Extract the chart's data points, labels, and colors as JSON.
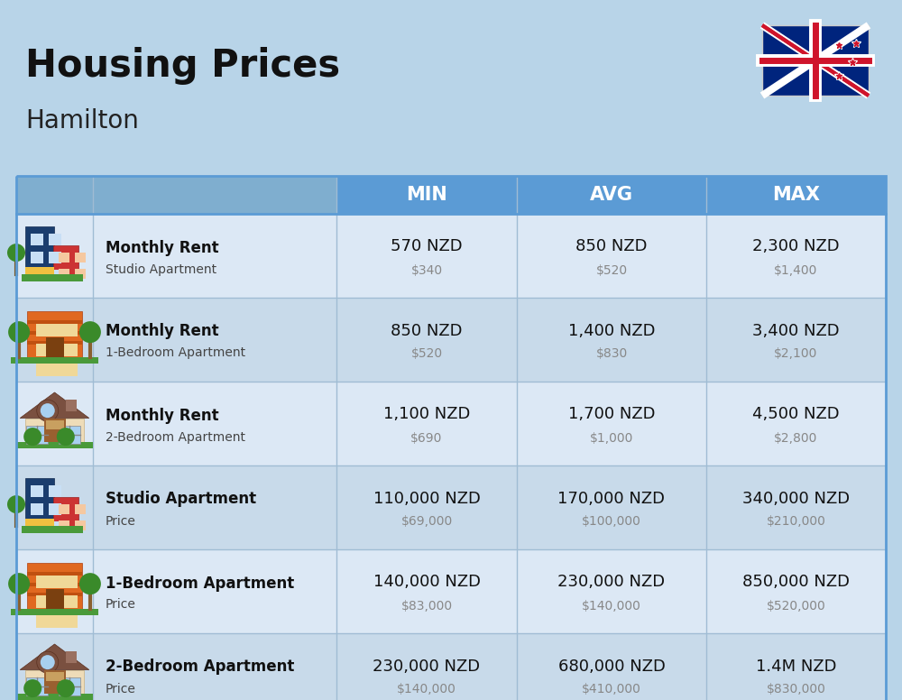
{
  "title": "Housing Prices",
  "subtitle": "Hamilton",
  "bg_color": "#b8d4e8",
  "header_bg": "#5b9bd5",
  "header_text_color": "#ffffff",
  "header_labels": [
    "MIN",
    "AVG",
    "MAX"
  ],
  "row_bg_light": "#dce8f5",
  "row_bg_dark": "#c8daea",
  "col_divider_color": "#a0bcd4",
  "rows": [
    {
      "bold_label": "Monthly Rent",
      "sub_label": "Studio Apartment",
      "min_nzd": "570 NZD",
      "min_usd": "$340",
      "avg_nzd": "850 NZD",
      "avg_usd": "$520",
      "max_nzd": "2,300 NZD",
      "max_usd": "$1,400",
      "icon_type": "studio_blue"
    },
    {
      "bold_label": "Monthly Rent",
      "sub_label": "1-Bedroom Apartment",
      "min_nzd": "850 NZD",
      "min_usd": "$520",
      "avg_nzd": "1,400 NZD",
      "avg_usd": "$830",
      "max_nzd": "3,400 NZD",
      "max_usd": "$2,100",
      "icon_type": "apartment_orange"
    },
    {
      "bold_label": "Monthly Rent",
      "sub_label": "2-Bedroom Apartment",
      "min_nzd": "1,100 NZD",
      "min_usd": "$690",
      "avg_nzd": "1,700 NZD",
      "avg_usd": "$1,000",
      "max_nzd": "4,500 NZD",
      "max_usd": "$2,800",
      "icon_type": "house_beige"
    },
    {
      "bold_label": "Studio Apartment",
      "sub_label": "Price",
      "min_nzd": "110,000 NZD",
      "min_usd": "$69,000",
      "avg_nzd": "170,000 NZD",
      "avg_usd": "$100,000",
      "max_nzd": "340,000 NZD",
      "max_usd": "$210,000",
      "icon_type": "studio_blue"
    },
    {
      "bold_label": "1-Bedroom Apartment",
      "sub_label": "Price",
      "min_nzd": "140,000 NZD",
      "min_usd": "$83,000",
      "avg_nzd": "230,000 NZD",
      "avg_usd": "$140,000",
      "max_nzd": "850,000 NZD",
      "max_usd": "$520,000",
      "icon_type": "apartment_orange"
    },
    {
      "bold_label": "2-Bedroom Apartment",
      "sub_label": "Price",
      "min_nzd": "230,000 NZD",
      "min_usd": "$140,000",
      "avg_nzd": "680,000 NZD",
      "avg_usd": "$410,000",
      "max_nzd": "1.4M NZD",
      "max_usd": "$830,000",
      "icon_type": "house_beige2"
    }
  ]
}
